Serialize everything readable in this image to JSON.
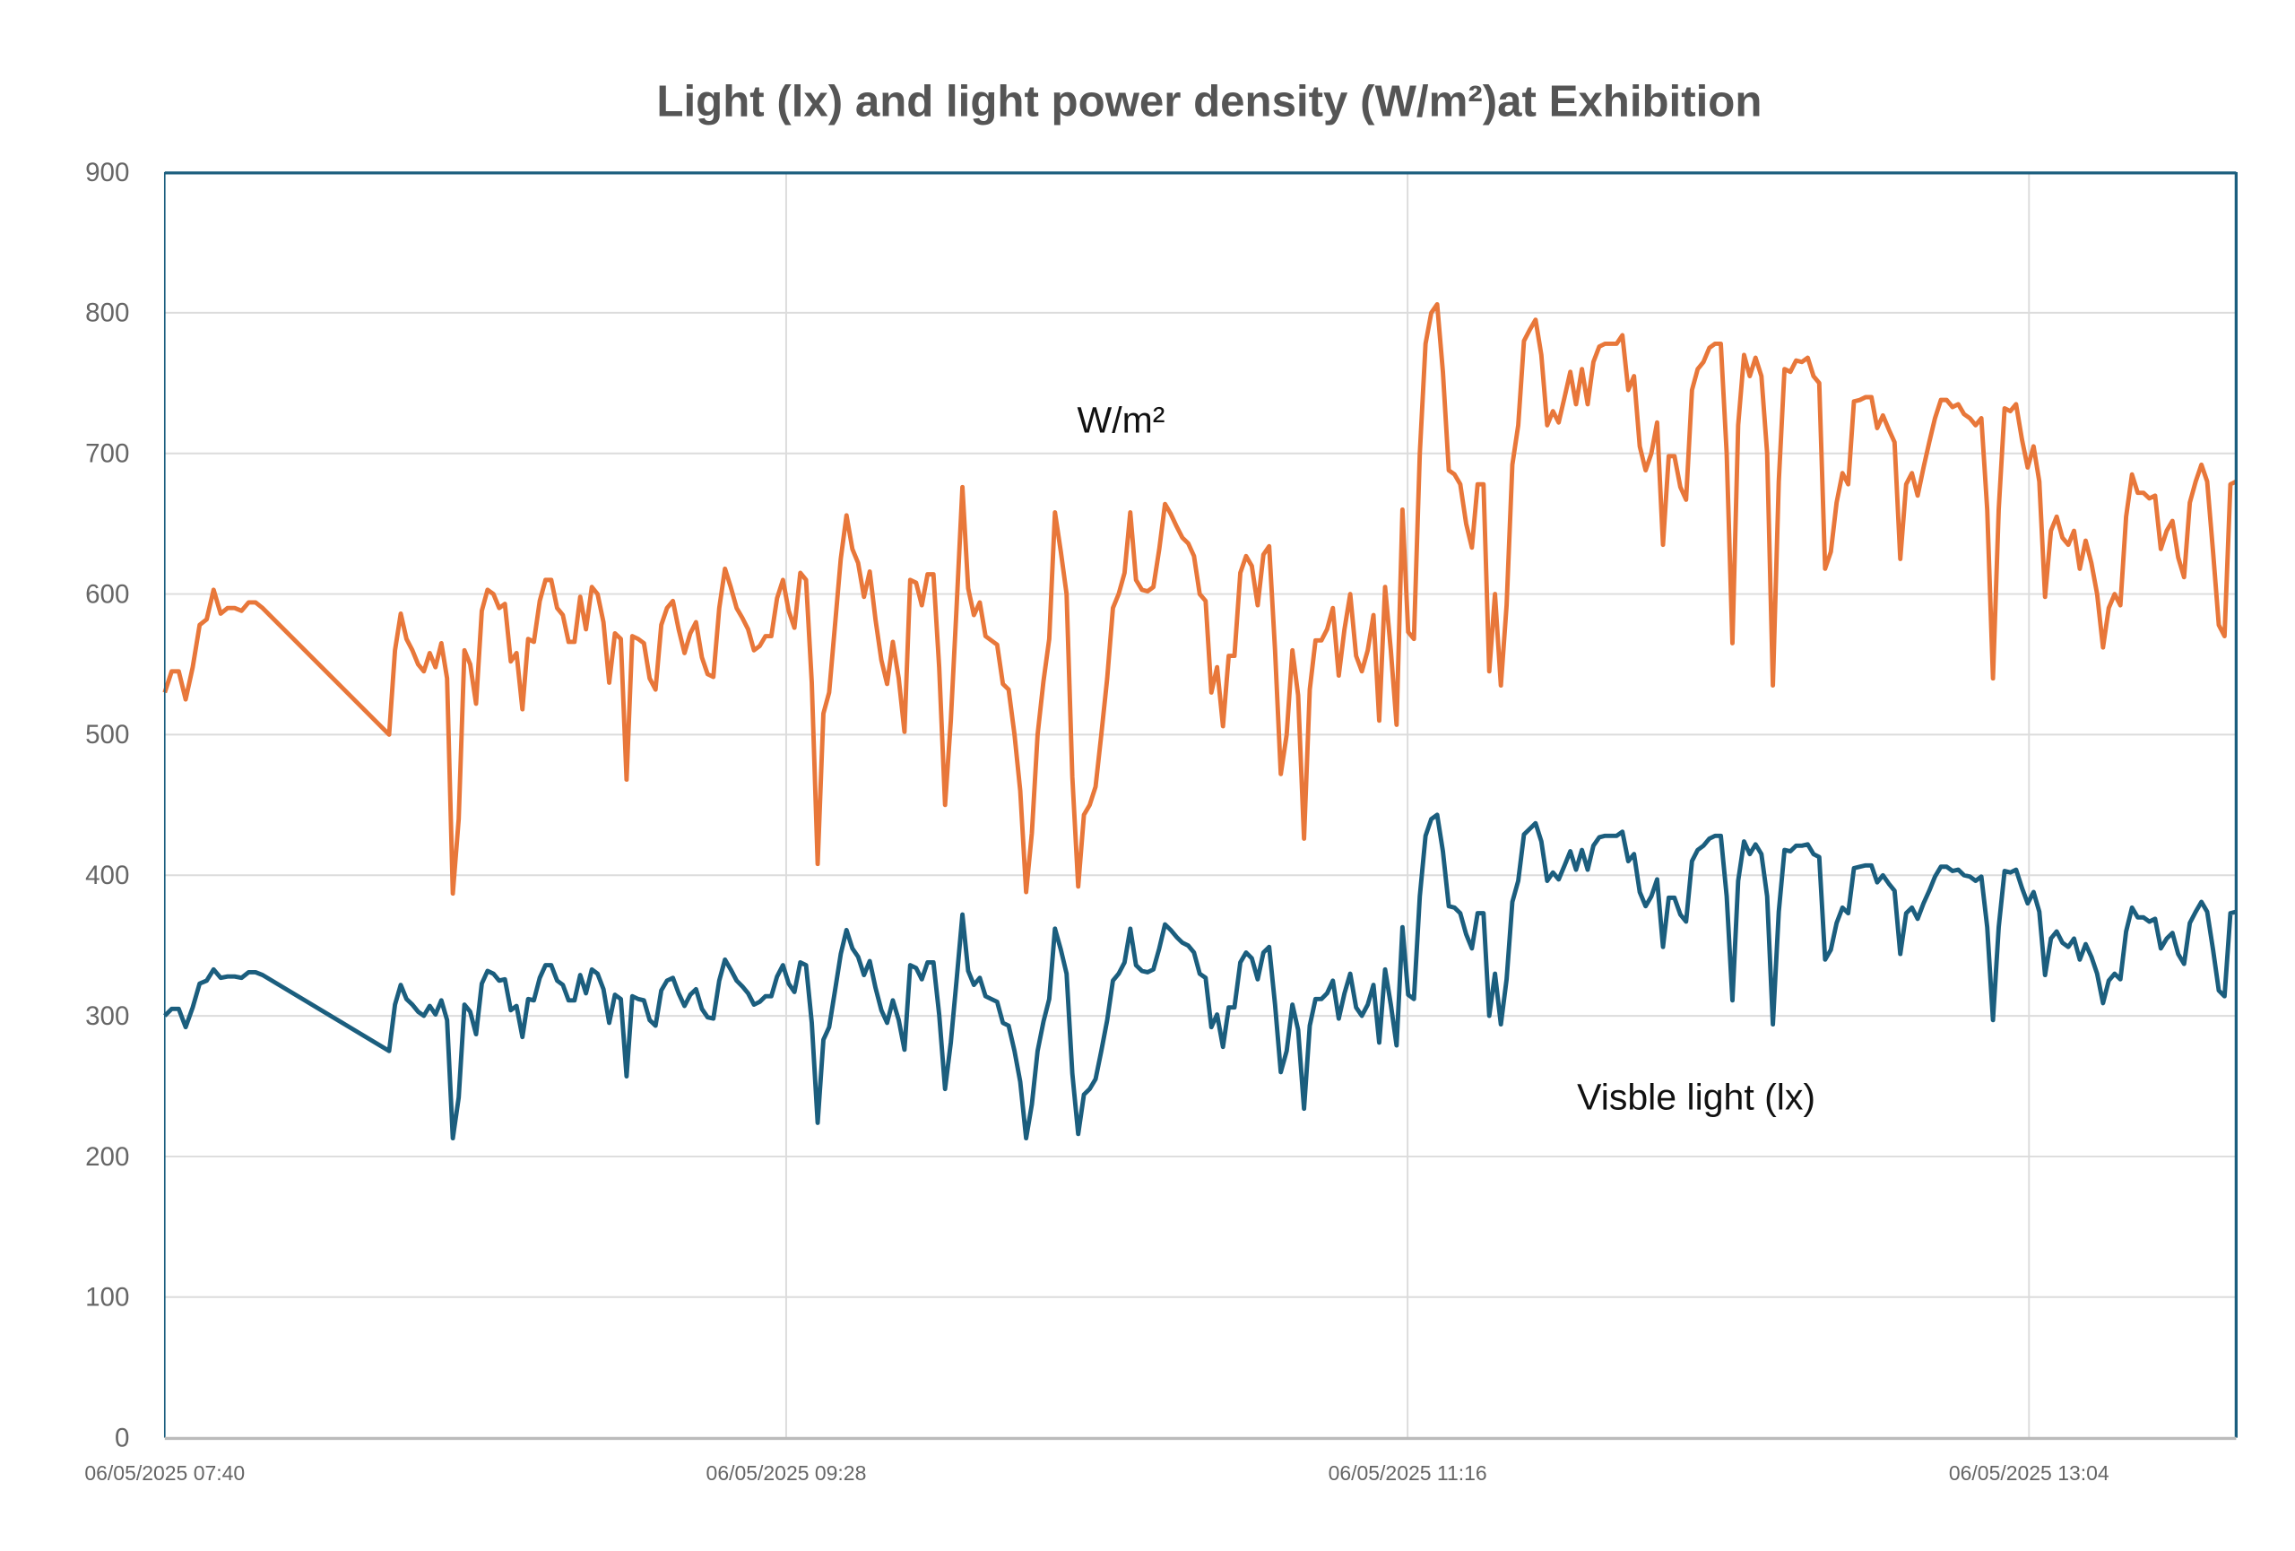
{
  "chart_data": {
    "type": "line",
    "title": "Light (lx) and light power density (W/m²)at Exhibition",
    "xlabel": "",
    "ylabel": "",
    "ylim": [
      0,
      900
    ],
    "yticks": [
      0,
      100,
      200,
      300,
      400,
      500,
      600,
      700,
      800,
      900
    ],
    "xlim": [
      "07:40",
      "13:40"
    ],
    "xticks": [
      {
        "time": "07:40",
        "label": "06/05/2025 07:40"
      },
      {
        "time": "09:28",
        "label": "06/05/2025 09:28"
      },
      {
        "time": "11:16",
        "label": "06/05/2025 11:16"
      },
      {
        "time": "13:04",
        "label": "06/05/2025 13:04"
      }
    ],
    "grid": true,
    "legend": "none (inline annotations)",
    "annotations": {
      "power": "W/m²",
      "light": "Visble light (lx)"
    },
    "series": [
      {
        "name": "W/m²",
        "color": "#E8773A",
        "segments": [
          {
            "start": "07:40",
            "end": "07:57",
            "values": [
              530,
              545,
              545,
              525,
              548,
              578,
              582,
              603,
              586,
              590,
              590,
              588,
              594,
              594,
              590
            ]
          },
          {
            "start": "08:19",
            "end": "13:40",
            "values": [
              500,
              560,
              586,
              568,
              560,
              550,
              545,
              558,
              548,
              565,
              540,
              387,
              440,
              560,
              550,
              522,
              588,
              603,
              600,
              590,
              593,
              552,
              558,
              518,
              568,
              566,
              595,
              610,
              610,
              590,
              585,
              566,
              566,
              598,
              575,
              605,
              600,
              580,
              537,
              572,
              568,
              468,
              570,
              568,
              565,
              540,
              532,
              578,
              590,
              595,
              575,
              558,
              572,
              580,
              555,
              543,
              541,
              590,
              618,
              605,
              590,
              583,
              575,
              560,
              563,
              570,
              570,
              597,
              610,
              588,
              576,
              615,
              610,
              537,
              408,
              515,
              530,
              578,
              625,
              656,
              632,
              622,
              598,
              616,
              582,
              553,
              536,
              566,
              540,
              502,
              610,
              608,
              592,
              614,
              614,
              548,
              450,
              510,
              590,
              676,
              604,
              585,
              594,
              570,
              567,
              564,
              536,
              532,
              500,
              460,
              388,
              430,
              500,
              538,
              568,
              658,
              630,
              600,
              470,
              392,
              443,
              450,
              463,
              500,
              540,
              590,
              600,
              615,
              658,
              610,
              603,
              602,
              605,
              632,
              664,
              657,
              648,
              640,
              636,
              627,
              600,
              595,
              530,
              548,
              506,
              556,
              556,
              615,
              627,
              620,
              592,
              628,
              634,
              560,
              472,
              500,
              560,
              528,
              426,
              532,
              567,
              567,
              575,
              590,
              542,
              575,
              600,
              556,
              545,
              560,
              585,
              510,
              605,
              560,
              507,
              660,
              573,
              568,
              700,
              778,
              800,
              806,
              758,
              688,
              685,
              678,
              650,
              633,
              678,
              678,
              545,
              600,
              535,
              592,
              692,
              720,
              780,
              788,
              795,
              770,
              720,
              730,
              722,
              740,
              758,
              735,
              760,
              735,
              765,
              776,
              778,
              778,
              778,
              784,
              745,
              755,
              705,
              688,
              700,
              722,
              635,
              698,
              698,
              676,
              667,
              745,
              760,
              765,
              775,
              778,
              778,
              700,
              565,
              720,
              770,
              755,
              768,
              755,
              700,
              535,
              680,
              760,
              758,
              766,
              765,
              768,
              755,
              750,
              618,
              630,
              665,
              686,
              678,
              737,
              738,
              740,
              740,
              718,
              727,
              717,
              708,
              625,
              678,
              686,
              670,
              690,
              708,
              725,
              738,
              738,
              733,
              735,
              728,
              725,
              720,
              725,
              660,
              540,
              660,
              732,
              730,
              735,
              710,
              690,
              705,
              680,
              598,
              645,
              655,
              640,
              635,
              645,
              618,
              638,
              622,
              600,
              562,
              590,
              600,
              592,
              655,
              685,
              672,
              672,
              668,
              670,
              632,
              645,
              652,
              626,
              612,
              665,
              680,
              692,
              680,
              630,
              578,
              570,
              678,
              680
            ]
          }
        ]
      },
      {
        "name": "Visble light (lx)",
        "color": "#1B5E7E",
        "segments": [
          {
            "start": "07:40",
            "end": "07:57",
            "values": [
              300,
              305,
              305,
              292,
              306,
              323,
              325,
              333,
              327,
              328,
              328,
              327,
              331,
              331,
              329
            ]
          },
          {
            "start": "08:19",
            "end": "13:40",
            "values": [
              275,
              308,
              322,
              312,
              308,
              303,
              300,
              307,
              301,
              311,
              297,
              213,
              242,
              308,
              303,
              287,
              323,
              332,
              330,
              325,
              326,
              304,
              307,
              285,
              312,
              311,
              327,
              336,
              336,
              325,
              322,
              311,
              311,
              329,
              316,
              333,
              330,
              319,
              295,
              315,
              312,
              257,
              314,
              312,
              311,
              297,
              293,
              318,
              325,
              327,
              316,
              307,
              315,
              319,
              305,
              299,
              298,
              325,
              340,
              333,
              325,
              321,
              316,
              308,
              310,
              314,
              314,
              328,
              336,
              323,
              317,
              338,
              336,
              295,
              224,
              283,
              292,
              318,
              344,
              361,
              348,
              342,
              329,
              339,
              320,
              304,
              295,
              311,
              297,
              276,
              336,
              334,
              326,
              338,
              338,
              301,
              248,
              281,
              325,
              372,
              332,
              322,
              327,
              314,
              312,
              310,
              295,
              293,
              275,
              253,
              213,
              237,
              275,
              296,
              312,
              362,
              347,
              330,
              259,
              216,
              244,
              248,
              255,
              275,
              297,
              325,
              330,
              338,
              362,
              336,
              332,
              331,
              333,
              348,
              365,
              361,
              356,
              352,
              350,
              345,
              330,
              327,
              292,
              301,
              278,
              306,
              306,
              338,
              345,
              341,
              326,
              345,
              349,
              308,
              260,
              275,
              308,
              290,
              234,
              293,
              312,
              312,
              316,
              325,
              298,
              316,
              330,
              306,
              300,
              308,
              322,
              281,
              333,
              308,
              279,
              363,
              315,
              312,
              385,
              428,
              440,
              443,
              417,
              378,
              377,
              373,
              358,
              348,
              373,
              373,
              300,
              330,
              294,
              326,
              381,
              396,
              429,
              433,
              437,
              424,
              396,
              402,
              397,
              407,
              417,
              404,
              418,
              404,
              421,
              427,
              428,
              428,
              428,
              431,
              410,
              415,
              388,
              378,
              385,
              397,
              349,
              384,
              384,
              372,
              367,
              410,
              418,
              421,
              426,
              428,
              428,
              385,
              311,
              396,
              424,
              415,
              422,
              415,
              385,
              294,
              374,
              418,
              417,
              421,
              421,
              422,
              415,
              413,
              340,
              347,
              366,
              377,
              373,
              405,
              406,
              407,
              407,
              395,
              400,
              394,
              389,
              344,
              373,
              377,
              369,
              380,
              389,
              399,
              406,
              406,
              403,
              404,
              400,
              399,
              396,
              399,
              363,
              297,
              363,
              403,
              402,
              404,
              391,
              380,
              388,
              374,
              329,
              355,
              360,
              352,
              349,
              355,
              340,
              351,
              342,
              330,
              309,
              325,
              330,
              326,
              360,
              377,
              370,
              370,
              367,
              369,
              348,
              355,
              359,
              344,
              337,
              366,
              374,
              381,
              374,
              347,
              318,
              314,
              373,
              374
            ]
          }
        ]
      }
    ]
  }
}
